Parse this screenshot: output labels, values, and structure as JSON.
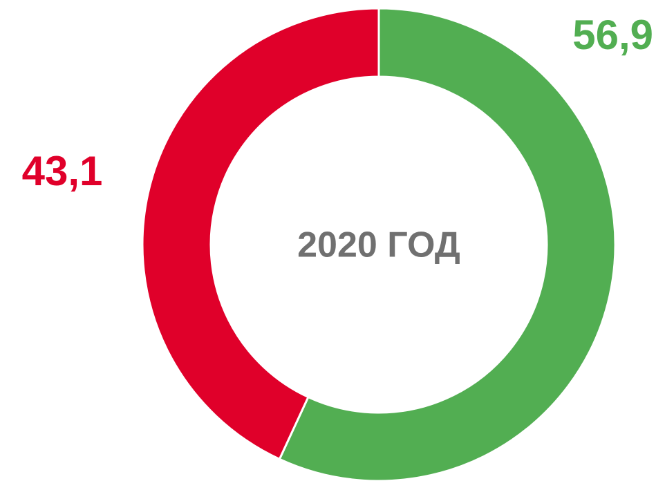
{
  "chart_data": {
    "type": "donut",
    "center_label": "2020 ГОД",
    "categories": [
      null,
      null
    ],
    "values": [
      56.9,
      43.1
    ],
    "value_labels": [
      "56,9",
      "43,1"
    ],
    "colors": [
      "#52ae52",
      "#e0002a"
    ]
  }
}
